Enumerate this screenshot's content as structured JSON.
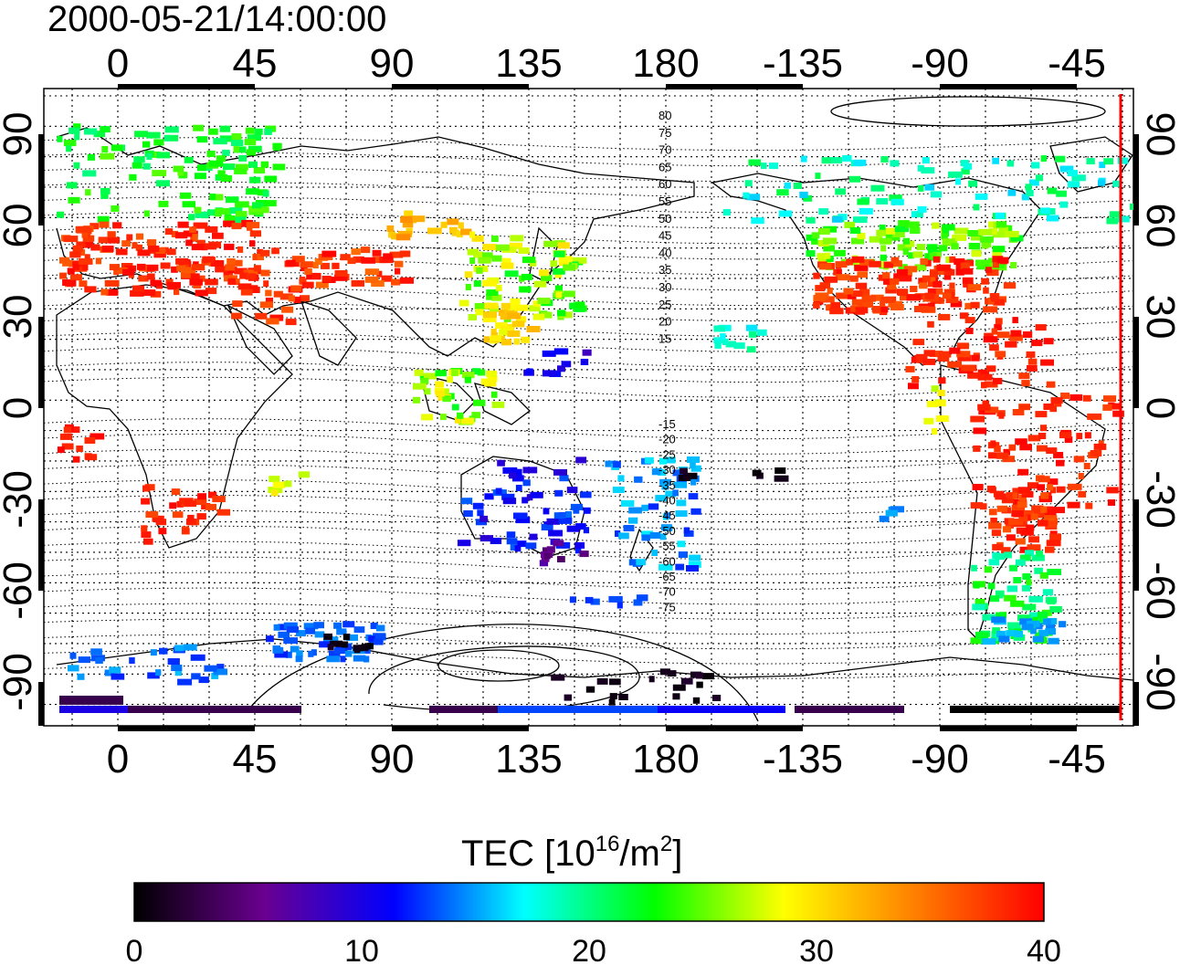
{
  "title": "2000-05-21/14:00:00",
  "axes": {
    "top_lon_ticks": [
      "0",
      "45",
      "90",
      "135",
      "180",
      "-135",
      "-90",
      "-45"
    ],
    "bottom_lon_ticks": [
      "0",
      "45",
      "90",
      "135",
      "180",
      "-135",
      "-90",
      "-45"
    ],
    "lat_ticks": [
      "90",
      "60",
      "30",
      "0",
      "-30",
      "-60",
      "-90"
    ]
  },
  "contour_labels_north": [
    "80",
    "75",
    "70",
    "65",
    "60",
    "55",
    "50",
    "45",
    "40",
    "35",
    "30",
    "25",
    "20",
    "15"
  ],
  "contour_labels_south": [
    "-15",
    "-20",
    "-25",
    "-30",
    "-35",
    "-40",
    "-45",
    "-50",
    "-55",
    "-60",
    "-65",
    "-70",
    "-75"
  ],
  "colorbar": {
    "label_main": "TEC  [10",
    "label_sup1": "16",
    "label_mid": "/m",
    "label_sup2": "2",
    "label_end": "]",
    "ticks": [
      "0",
      "10",
      "20",
      "30",
      "40"
    ],
    "stops": [
      "#000000",
      "#6a0090",
      "#0000ff",
      "#00ffff",
      "#00ff00",
      "#ffff00",
      "#ff8000",
      "#ff0000"
    ]
  },
  "colors": {
    "terminator": "#ff0000",
    "coastline": "#000000",
    "grid": "#000000"
  }
}
